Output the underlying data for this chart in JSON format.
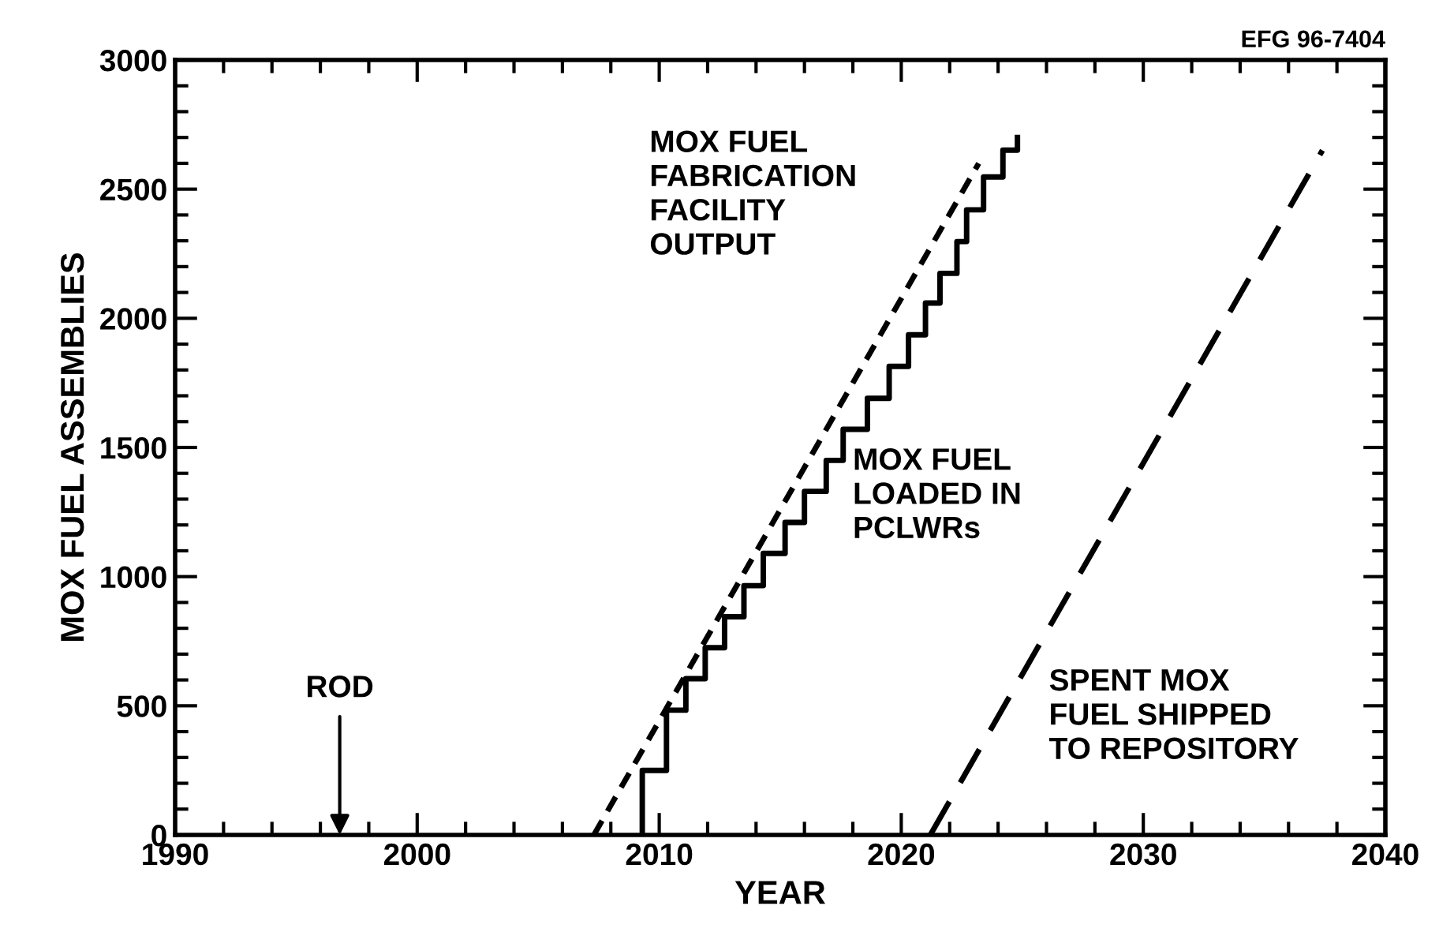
{
  "chart_data": {
    "type": "line",
    "xlabel": "YEAR",
    "ylabel": "MOX FUEL ASSEMBLIES",
    "xlim": [
      1990,
      2040
    ],
    "xticks": [
      1990,
      2000,
      2010,
      2020,
      2030,
      2040
    ],
    "ylim": [
      0,
      3000
    ],
    "yticks": [
      0,
      500,
      1000,
      1500,
      2000,
      2500,
      3000
    ],
    "grid": false,
    "legend": false,
    "marker": "none",
    "series": [
      {
        "line_style": "dotted",
        "color": "#000000",
        "x": [
          2007.3,
          2023.2
        ],
        "values": [
          0,
          2600
        ]
      },
      {
        "type": "step",
        "line_style": "solid",
        "color": "#000000",
        "x": [
          2009.3,
          2009.3,
          2010.3,
          2011.1,
          2011.9,
          2012.7,
          2013.5,
          2014.3,
          2015.2,
          2016.0,
          2016.9,
          2017.6,
          2018.6,
          2019.5,
          2020.3,
          2021.0,
          2021.6,
          2022.3,
          2022.7,
          2023.4,
          2024.2,
          2024.8
        ],
        "values": [
          0,
          250,
          483,
          605,
          725,
          845,
          965,
          1090,
          1210,
          1330,
          1450,
          1570,
          1690,
          1814,
          1936,
          2059,
          2174,
          2297,
          2420,
          2547,
          2651,
          2700
        ]
      },
      {
        "line_style": "dashed",
        "color": "#000000",
        "x": [
          2021.2,
          2037.4
        ],
        "values": [
          0,
          2650
        ]
      }
    ],
    "annotations": [
      "MOX FUEL\nFABRICATION\nFACILITY\nOUTPUT",
      "MOX FUEL\nLOADED IN\nPCLWRs",
      "SPENT MOX\nFUEL SHIPPED\nTO REPOSITORY",
      "ROD",
      "EFG 96-7404"
    ]
  }
}
